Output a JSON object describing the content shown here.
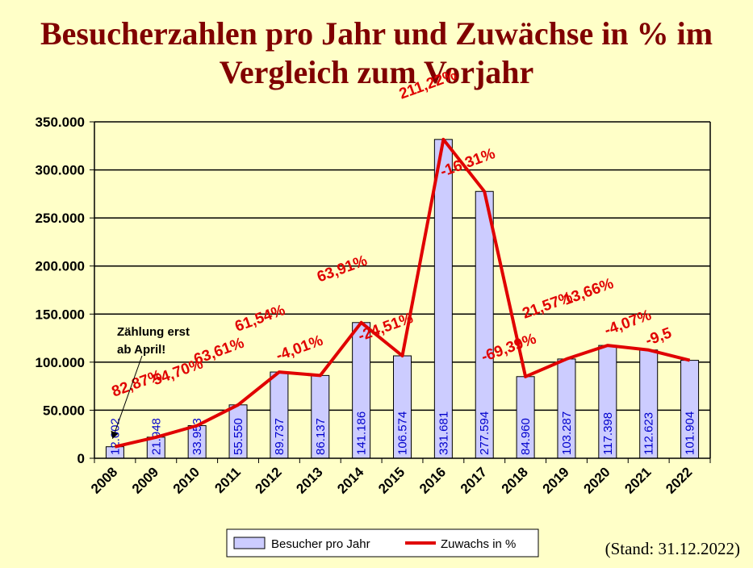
{
  "title": {
    "line1": "Besucherzahlen pro Jahr und Zuwächse in % im",
    "line2": "Vergleich zum Vorjahr"
  },
  "stand": "(Stand: 31.12.2022)",
  "chart_data": {
    "type": "bar",
    "categories": [
      "2008",
      "2009",
      "2010",
      "2011",
      "2012",
      "2013",
      "2014",
      "2015",
      "2016",
      "2017",
      "2018",
      "2019",
      "2020",
      "2021",
      "2022"
    ],
    "series": [
      {
        "name": "Besucher pro Jahr",
        "type": "bar",
        "color": "#CCCCFF",
        "values": [
          12002,
          21948,
          33953,
          55550,
          89737,
          86137,
          141186,
          106574,
          331681,
          277594,
          84960,
          103287,
          117398,
          112623,
          101904
        ],
        "labels": [
          "12.002",
          "21.948",
          "33.953",
          "55.550",
          "89.737",
          "86.137",
          "141.186",
          "106.574",
          "331.681",
          "277.594",
          "84.960",
          "103.287",
          "117.398",
          "112.623",
          "101.904"
        ]
      },
      {
        "name": "Zuwachs in %",
        "type": "line",
        "color": "#E00000",
        "labels": [
          "",
          "82,87%",
          "54,70%",
          "63,61%",
          "61,54%",
          "-4,01%",
          "63,91%",
          "-24,51%",
          "211,22%",
          "-16,31%",
          "-69,39%",
          "21,57%",
          "13,66%",
          "-4,07%",
          "-9,5"
        ]
      }
    ],
    "ylim": [
      0,
      350000
    ],
    "yticks": [
      "0",
      "50.000",
      "100.000",
      "150.000",
      "200.000",
      "250.000",
      "300.000",
      "350.000"
    ],
    "grid": true,
    "legend": "bottom",
    "annotation": {
      "lines": [
        "Zählung  erst",
        "ab April!"
      ],
      "category": "2008"
    }
  }
}
